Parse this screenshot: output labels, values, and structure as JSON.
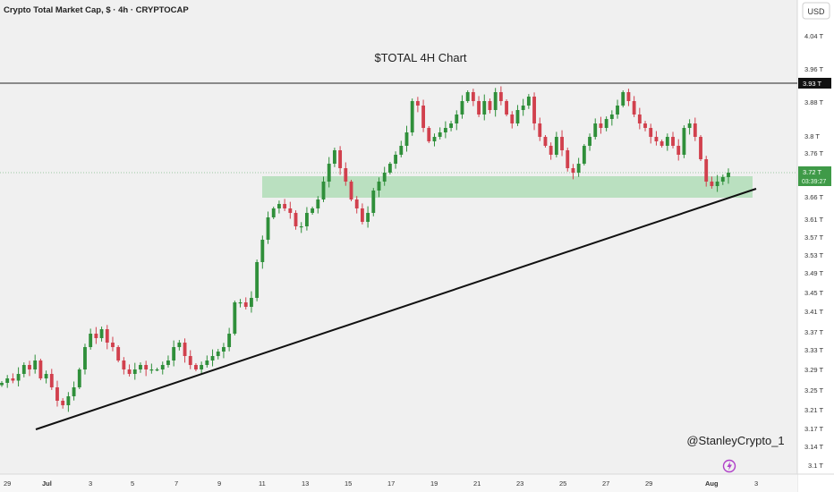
{
  "header": {
    "symbol_title": "Crypto Total Market Cap, $ · 4h · CRYPTOCAP",
    "currency": "USD"
  },
  "chart_data": {
    "type": "candlestick",
    "title": "$TOTAL 4H Chart",
    "watermark": "@StanleyCrypto_1",
    "price_unit": "T",
    "y_ticks": [
      "4.04 T",
      "3.96 T",
      "3.88 T",
      "3.8 T",
      "3.76 T",
      "3.66 T",
      "3.61 T",
      "3.57 T",
      "3.53 T",
      "3.49 T",
      "3.45 T",
      "3.41 T",
      "3.37 T",
      "3.33 T",
      "3.29 T",
      "3.25 T",
      "3.21 T",
      "3.17 T",
      "3.14 T",
      "3.1 T"
    ],
    "x_ticks": [
      "29",
      "Jul",
      "3",
      "5",
      "7",
      "9",
      "11",
      "13",
      "15",
      "17",
      "19",
      "21",
      "23",
      "25",
      "27",
      "29",
      "Aug",
      "3"
    ],
    "resistance_label": "3.93 T",
    "current_price_label": "3.72 T",
    "countdown_label": "03:39:27",
    "resistance_level": 3.93,
    "current_price": 3.72,
    "support_zone": {
      "low": 3.66,
      "high": 3.705,
      "from": "Jul 11",
      "to": "Aug 2"
    },
    "trendline": {
      "from": {
        "date": "Jun 30",
        "value": 3.17
      },
      "to": {
        "date": "Aug 2",
        "value": 3.68
      }
    },
    "closes": [
      3.25,
      3.26,
      3.255,
      3.27,
      3.29,
      3.28,
      3.3,
      3.26,
      3.27,
      3.24,
      3.21,
      3.2,
      3.22,
      3.24,
      3.28,
      3.33,
      3.36,
      3.35,
      3.37,
      3.34,
      3.33,
      3.3,
      3.28,
      3.27,
      3.28,
      3.29,
      3.28,
      3.28,
      3.28,
      3.29,
      3.3,
      3.33,
      3.34,
      3.31,
      3.29,
      3.28,
      3.29,
      3.3,
      3.31,
      3.32,
      3.33,
      3.36,
      3.43,
      3.43,
      3.42,
      3.44,
      3.52,
      3.57,
      3.62,
      3.64,
      3.65,
      3.64,
      3.63,
      3.6,
      3.6,
      3.63,
      3.64,
      3.66,
      3.7,
      3.74,
      3.77,
      3.73,
      3.7,
      3.66,
      3.64,
      3.61,
      3.63,
      3.68,
      3.7,
      3.72,
      3.74,
      3.76,
      3.78,
      3.81,
      3.88,
      3.87,
      3.82,
      3.79,
      3.8,
      3.81,
      3.82,
      3.83,
      3.85,
      3.88,
      3.9,
      3.88,
      3.85,
      3.88,
      3.86,
      3.9,
      3.88,
      3.85,
      3.83,
      3.86,
      3.87,
      3.89,
      3.83,
      3.8,
      3.78,
      3.76,
      3.8,
      3.77,
      3.73,
      3.72,
      3.74,
      3.78,
      3.8,
      3.83,
      3.82,
      3.84,
      3.85,
      3.87,
      3.9,
      3.88,
      3.85,
      3.83,
      3.82,
      3.8,
      3.79,
      3.78,
      3.8,
      3.78,
      3.76,
      3.82,
      3.83,
      3.8,
      3.75,
      3.7,
      3.69,
      3.7,
      3.71,
      3.72
    ]
  }
}
